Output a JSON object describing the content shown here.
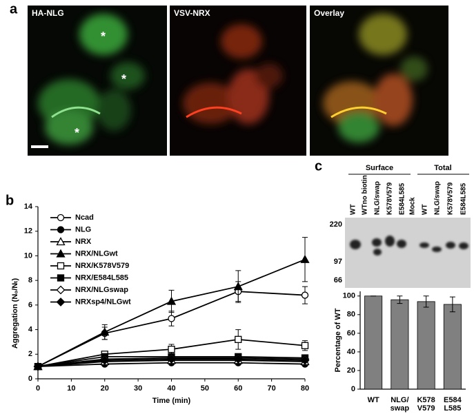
{
  "panels": {
    "a": {
      "label": "a",
      "images": [
        "HA-NLG",
        "VSV-NRX",
        "Overlay"
      ],
      "asterisk": "*"
    },
    "b": {
      "label": "b"
    },
    "c": {
      "label": "c",
      "blot": {
        "groups": [
          "Surface",
          "Total"
        ],
        "lanes": [
          "WT",
          "WTno biotin",
          "NLG/swap",
          "K578V579",
          "E584L585",
          "Mock",
          "WT",
          "NLG/swap",
          "K578V579",
          "E584L585"
        ],
        "markers": [
          "220",
          "97",
          "66"
        ]
      }
    }
  },
  "chart_data": [
    {
      "type": "line",
      "xlabel": "Time (min)",
      "ylabel": "Aggregation (N₀/Nₜ)",
      "x": [
        0,
        20,
        40,
        60,
        80
      ],
      "xlim": [
        0,
        80
      ],
      "xticks": [
        0,
        10,
        20,
        30,
        40,
        50,
        60,
        70,
        80
      ],
      "ylim": [
        0,
        14
      ],
      "yticks": [
        0,
        2,
        4,
        6,
        8,
        10,
        12,
        14
      ],
      "legend": "upper left",
      "series": [
        {
          "name": "Ncad",
          "color": "#000000",
          "marker": "circle",
          "filled": false,
          "values": [
            1,
            3.7,
            4.9,
            7.1,
            6.8
          ],
          "errors": [
            0,
            0.5,
            0.6,
            0.8,
            0.7
          ]
        },
        {
          "name": "NLG",
          "color": "#000000",
          "marker": "circle",
          "filled": true,
          "values": [
            1,
            1.2,
            1.3,
            1.3,
            1.2
          ],
          "errors": [
            0,
            0.1,
            0.1,
            0.1,
            0.1
          ]
        },
        {
          "name": "NRX",
          "color": "#000000",
          "marker": "triangle",
          "filled": false,
          "values": [
            1,
            1.4,
            1.5,
            1.5,
            1.4
          ],
          "errors": [
            0,
            0.1,
            0.1,
            0.1,
            0.1
          ]
        },
        {
          "name": "NRX/NLGwt",
          "color": "#000000",
          "marker": "triangle",
          "filled": true,
          "values": [
            1,
            3.8,
            6.3,
            7.5,
            9.7
          ],
          "errors": [
            0,
            0.6,
            0.9,
            1.3,
            1.8
          ]
        },
        {
          "name": "NRX/K578V579",
          "color": "#000000",
          "marker": "square",
          "filled": false,
          "values": [
            1,
            2.0,
            2.4,
            3.2,
            2.7
          ],
          "errors": [
            0,
            0.2,
            0.4,
            0.8,
            0.4
          ]
        },
        {
          "name": "NRX/E584L585",
          "color": "#000000",
          "marker": "square",
          "filled": true,
          "values": [
            1,
            1.8,
            1.8,
            1.8,
            1.7
          ],
          "errors": [
            0,
            0.1,
            0.2,
            0.2,
            0.2
          ]
        },
        {
          "name": "NRX/NLGswap",
          "color": "#000000",
          "marker": "diamond",
          "filled": false,
          "values": [
            1,
            1.6,
            1.7,
            1.7,
            1.6
          ],
          "errors": [
            0,
            0.1,
            0.1,
            0.2,
            0.2
          ]
        },
        {
          "name": "NRXsp4/NLGwt",
          "color": "#000000",
          "marker": "diamond",
          "filled": true,
          "values": [
            1,
            1.5,
            1.6,
            1.6,
            1.5
          ],
          "errors": [
            0,
            0.1,
            0.1,
            0.1,
            0.1
          ]
        }
      ]
    },
    {
      "type": "bar",
      "ylabel": "Percentage of WT",
      "categories": [
        "WT",
        "NLG/\nswap",
        "K578\nV579",
        "E584\nL585"
      ],
      "values": [
        100,
        96,
        94,
        91
      ],
      "errors": [
        0,
        4,
        6,
        8
      ],
      "color": "#808080",
      "ylim": [
        0,
        105
      ],
      "yticks": [
        0,
        20,
        40,
        60,
        80,
        100
      ]
    }
  ]
}
